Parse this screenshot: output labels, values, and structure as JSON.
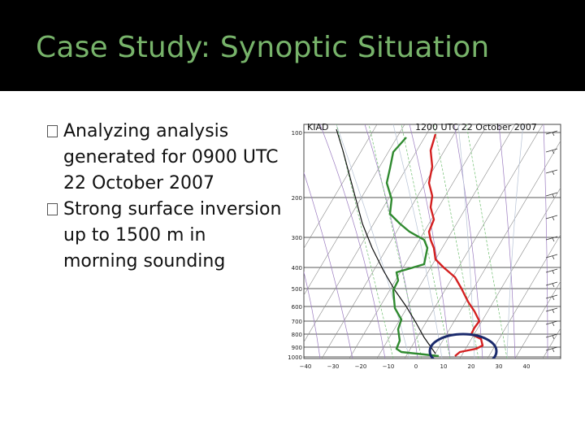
{
  "slide": {
    "title": "Case Study: Synoptic Situation",
    "bullets": [
      {
        "text": "Analyzing analysis generated for 0900 UTC 22 October 2007"
      },
      {
        "text": "Strong surface inversion up to 1500 m in morning sounding"
      }
    ]
  },
  "sounding": {
    "station": "KIAD",
    "time_label": "1200 UTC 22 October 2007",
    "pressure_labels": [
      "100",
      "200",
      "300",
      "400",
      "500",
      "600",
      "700",
      "800",
      "900",
      "1000"
    ],
    "temperature_labels": [
      "−40",
      "−30",
      "−20",
      "−10",
      "0",
      "10",
      "20",
      "30",
      "40"
    ],
    "colors": {
      "temperature": "#d42020",
      "dewpoint": "#2f8a2f",
      "circle": "#1a2a6c"
    }
  }
}
